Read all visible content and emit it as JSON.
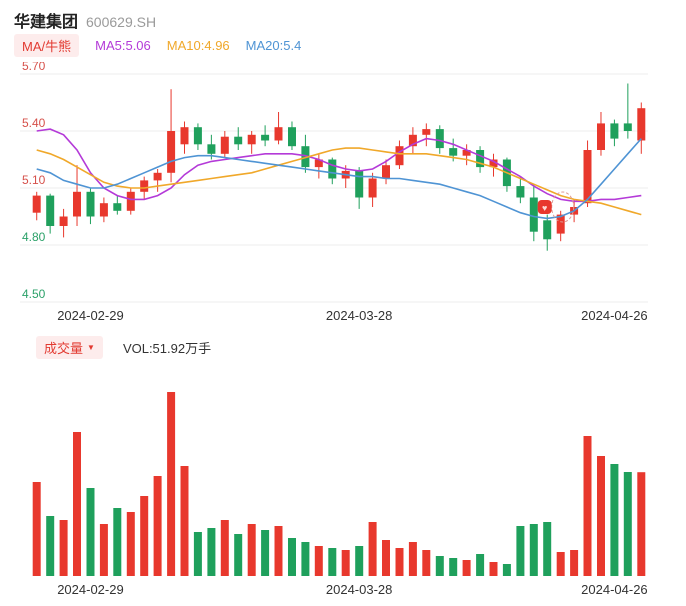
{
  "header": {
    "title": "华建集团",
    "code": "600629.SH"
  },
  "legend": {
    "badge": "MA/牛熊",
    "items": [
      {
        "label": "MA5:5.06",
        "color": "#b43ad8"
      },
      {
        "label": "MA10:4.96",
        "color": "#f0a82a"
      },
      {
        "label": "MA20:5.4",
        "color": "#4f94d4"
      }
    ]
  },
  "volume_header": {
    "badge": "成交量",
    "caret_icon": "▼",
    "vol_label": "VOL:51.92万手"
  },
  "colors": {
    "up": "#e8382d",
    "down": "#1fa05c",
    "grid": "#ececec",
    "axis_text": "#333333"
  },
  "chart_data": {
    "type": "candlestick+volume",
    "title": "华建集团 600629.SH 日K线",
    "volume_unit": "万手",
    "y_axis": {
      "labels": [
        {
          "text": "5.70",
          "value": 5.7,
          "color": "#d6504a"
        },
        {
          "text": "5.40",
          "value": 5.4,
          "color": "#d6504a"
        },
        {
          "text": "5.10",
          "value": 5.1,
          "color": "#d6504a"
        },
        {
          "text": "4.80",
          "value": 4.8,
          "color": "#2ba169"
        },
        {
          "text": "4.50",
          "value": 4.5,
          "color": "#2ba169"
        }
      ],
      "range": [
        4.5,
        5.7
      ]
    },
    "x_labels": [
      {
        "text": "2024-02-29",
        "index": 4
      },
      {
        "text": "2024-03-28",
        "index": 24
      },
      {
        "text": "2024-04-26",
        "index": 43
      }
    ],
    "marker": {
      "index": 39,
      "price": 5.0,
      "icon": "♥"
    },
    "candles": [
      {
        "d": "2024-02-23",
        "o": 4.97,
        "h": 5.08,
        "l": 4.93,
        "c": 5.06,
        "v": 47
      },
      {
        "d": "2024-02-26",
        "o": 5.06,
        "h": 5.07,
        "l": 4.86,
        "c": 4.9,
        "v": 30
      },
      {
        "d": "2024-02-27",
        "o": 4.9,
        "h": 4.99,
        "l": 4.84,
        "c": 4.95,
        "v": 28
      },
      {
        "d": "2024-02-28",
        "o": 4.95,
        "h": 5.22,
        "l": 4.9,
        "c": 5.08,
        "v": 72
      },
      {
        "d": "2024-02-29",
        "o": 5.08,
        "h": 5.1,
        "l": 4.91,
        "c": 4.95,
        "v": 44
      },
      {
        "d": "2024-03-01",
        "o": 4.95,
        "h": 5.05,
        "l": 4.92,
        "c": 5.02,
        "v": 26
      },
      {
        "d": "2024-03-04",
        "o": 5.02,
        "h": 5.06,
        "l": 4.96,
        "c": 4.98,
        "v": 34
      },
      {
        "d": "2024-03-05",
        "o": 4.98,
        "h": 5.1,
        "l": 4.96,
        "c": 5.08,
        "v": 32
      },
      {
        "d": "2024-03-06",
        "o": 5.08,
        "h": 5.16,
        "l": 5.04,
        "c": 5.14,
        "v": 40
      },
      {
        "d": "2024-03-07",
        "o": 5.14,
        "h": 5.2,
        "l": 5.08,
        "c": 5.18,
        "v": 50
      },
      {
        "d": "2024-03-08",
        "o": 5.18,
        "h": 5.62,
        "l": 5.13,
        "c": 5.4,
        "v": 92
      },
      {
        "d": "2024-03-11",
        "o": 5.33,
        "h": 5.45,
        "l": 5.28,
        "c": 5.42,
        "v": 55
      },
      {
        "d": "2024-03-12",
        "o": 5.42,
        "h": 5.44,
        "l": 5.3,
        "c": 5.33,
        "v": 22
      },
      {
        "d": "2024-03-13",
        "o": 5.33,
        "h": 5.38,
        "l": 5.25,
        "c": 5.28,
        "v": 24
      },
      {
        "d": "2024-03-14",
        "o": 5.28,
        "h": 5.4,
        "l": 5.26,
        "c": 5.37,
        "v": 28
      },
      {
        "d": "2024-03-15",
        "o": 5.37,
        "h": 5.42,
        "l": 5.3,
        "c": 5.33,
        "v": 21
      },
      {
        "d": "2024-03-18",
        "o": 5.33,
        "h": 5.4,
        "l": 5.28,
        "c": 5.38,
        "v": 26
      },
      {
        "d": "2024-03-19",
        "o": 5.38,
        "h": 5.43,
        "l": 5.32,
        "c": 5.35,
        "v": 23
      },
      {
        "d": "2024-03-20",
        "o": 5.35,
        "h": 5.5,
        "l": 5.33,
        "c": 5.42,
        "v": 25
      },
      {
        "d": "2024-03-21",
        "o": 5.42,
        "h": 5.45,
        "l": 5.3,
        "c": 5.32,
        "v": 19
      },
      {
        "d": "2024-03-22",
        "o": 5.32,
        "h": 5.38,
        "l": 5.18,
        "c": 5.21,
        "v": 17
      },
      {
        "d": "2024-03-25",
        "o": 5.21,
        "h": 5.28,
        "l": 5.15,
        "c": 5.25,
        "v": 15
      },
      {
        "d": "2024-03-26",
        "o": 5.25,
        "h": 5.26,
        "l": 5.12,
        "c": 5.15,
        "v": 14
      },
      {
        "d": "2024-03-27",
        "o": 5.15,
        "h": 5.22,
        "l": 5.1,
        "c": 5.19,
        "v": 13
      },
      {
        "d": "2024-03-28",
        "o": 5.19,
        "h": 5.21,
        "l": 4.99,
        "c": 5.05,
        "v": 15
      },
      {
        "d": "2024-03-29",
        "o": 5.05,
        "h": 5.18,
        "l": 5.0,
        "c": 5.15,
        "v": 27
      },
      {
        "d": "2024-04-01",
        "o": 5.15,
        "h": 5.25,
        "l": 5.12,
        "c": 5.22,
        "v": 18
      },
      {
        "d": "2024-04-02",
        "o": 5.22,
        "h": 5.35,
        "l": 5.2,
        "c": 5.32,
        "v": 14
      },
      {
        "d": "2024-04-03",
        "o": 5.32,
        "h": 5.42,
        "l": 5.28,
        "c": 5.38,
        "v": 17
      },
      {
        "d": "2024-04-08",
        "o": 5.38,
        "h": 5.44,
        "l": 5.32,
        "c": 5.41,
        "v": 13
      },
      {
        "d": "2024-04-09",
        "o": 5.41,
        "h": 5.43,
        "l": 5.28,
        "c": 5.31,
        "v": 10
      },
      {
        "d": "2024-04-10",
        "o": 5.31,
        "h": 5.36,
        "l": 5.24,
        "c": 5.27,
        "v": 9
      },
      {
        "d": "2024-04-11",
        "o": 5.27,
        "h": 5.33,
        "l": 5.22,
        "c": 5.3,
        "v": 8
      },
      {
        "d": "2024-04-12",
        "o": 5.3,
        "h": 5.32,
        "l": 5.18,
        "c": 5.21,
        "v": 11
      },
      {
        "d": "2024-04-15",
        "o": 5.21,
        "h": 5.28,
        "l": 5.16,
        "c": 5.25,
        "v": 7
      },
      {
        "d": "2024-04-16",
        "o": 5.25,
        "h": 5.26,
        "l": 5.08,
        "c": 5.11,
        "v": 6
      },
      {
        "d": "2024-04-17",
        "o": 5.11,
        "h": 5.16,
        "l": 5.02,
        "c": 5.05,
        "v": 25
      },
      {
        "d": "2024-04-18",
        "o": 5.05,
        "h": 5.12,
        "l": 4.82,
        "c": 4.87,
        "v": 26
      },
      {
        "d": "2024-04-19",
        "o": 4.93,
        "h": 4.96,
        "l": 4.77,
        "c": 4.83,
        "v": 27
      },
      {
        "d": "2024-04-22",
        "o": 4.86,
        "h": 4.98,
        "l": 4.82,
        "c": 4.96,
        "v": 12
      },
      {
        "d": "2024-04-23",
        "o": 4.96,
        "h": 5.04,
        "l": 4.92,
        "c": 5.0,
        "v": 13
      },
      {
        "d": "2024-04-24",
        "o": 5.02,
        "h": 5.35,
        "l": 5.0,
        "c": 5.3,
        "v": 70
      },
      {
        "d": "2024-04-25",
        "o": 5.3,
        "h": 5.5,
        "l": 5.27,
        "c": 5.44,
        "v": 60
      },
      {
        "d": "2024-04-26",
        "o": 5.44,
        "h": 5.46,
        "l": 5.32,
        "c": 5.36,
        "v": 56
      },
      {
        "d": "2024-04-29",
        "o": 5.44,
        "h": 5.65,
        "l": 5.36,
        "c": 5.4,
        "v": 52
      },
      {
        "d": "2024-04-30",
        "o": 5.35,
        "h": 5.55,
        "l": 5.28,
        "c": 5.52,
        "v": 51.92
      }
    ],
    "ma_lines": [
      {
        "name": "MA5",
        "color": "#b43ad8",
        "values": [
          5.4,
          5.41,
          5.38,
          5.3,
          5.18,
          5.1,
          5.06,
          5.04,
          5.04,
          5.06,
          5.1,
          5.17,
          5.22,
          5.24,
          5.25,
          5.26,
          5.27,
          5.28,
          5.28,
          5.28,
          5.27,
          5.25,
          5.22,
          5.2,
          5.19,
          5.2,
          5.24,
          5.29,
          5.33,
          5.36,
          5.35,
          5.33,
          5.3,
          5.27,
          5.24,
          5.2,
          5.16,
          5.11,
          5.07,
          5.04,
          5.03,
          5.03,
          5.04,
          5.04,
          5.05,
          5.06
        ]
      },
      {
        "name": "MA10",
        "color": "#f0a82a",
        "values": [
          5.3,
          5.28,
          5.25,
          5.21,
          5.17,
          5.13,
          5.11,
          5.1,
          5.1,
          5.11,
          5.12,
          5.13,
          5.14,
          5.15,
          5.16,
          5.17,
          5.18,
          5.2,
          5.22,
          5.24,
          5.26,
          5.28,
          5.3,
          5.31,
          5.31,
          5.3,
          5.29,
          5.28,
          5.28,
          5.28,
          5.27,
          5.26,
          5.25,
          5.23,
          5.21,
          5.18,
          5.15,
          5.12,
          5.09,
          5.06,
          5.04,
          5.03,
          5.02,
          5.0,
          4.98,
          4.96
        ]
      },
      {
        "name": "MA20",
        "color": "#4f94d4",
        "values": [
          5.2,
          5.18,
          5.14,
          5.12,
          5.1,
          5.1,
          5.12,
          5.15,
          5.18,
          5.21,
          5.24,
          5.26,
          5.27,
          5.27,
          5.26,
          5.25,
          5.24,
          5.23,
          5.22,
          5.21,
          5.2,
          5.19,
          5.18,
          5.17,
          5.16,
          5.16,
          5.15,
          5.15,
          5.14,
          5.13,
          5.12,
          5.1,
          5.08,
          5.06,
          5.03,
          5.0,
          4.97,
          4.95,
          4.94,
          4.95,
          4.98,
          5.04,
          5.12,
          5.2,
          5.28,
          5.36
        ]
      }
    ]
  }
}
